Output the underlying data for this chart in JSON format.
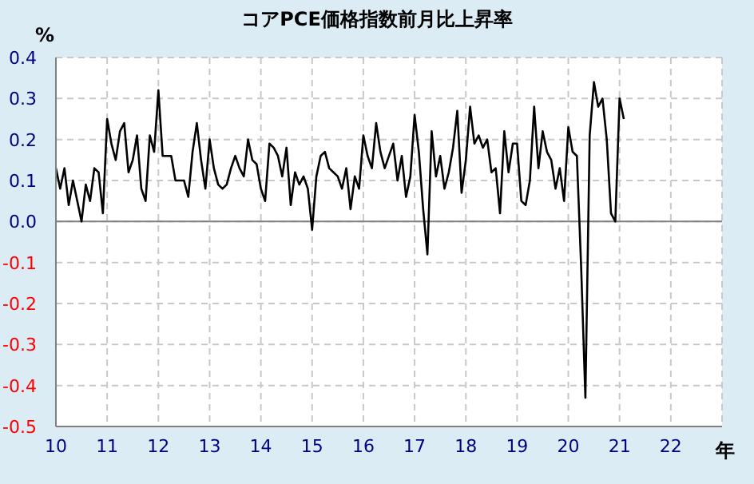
{
  "chart_data": {
    "type": "line",
    "title": "コアPCE価格指数前月比上昇率",
    "ylabel": "%",
    "xlabel": "年",
    "xlim": [
      10,
      23
    ],
    "xticks": [
      10,
      11,
      12,
      13,
      14,
      15,
      16,
      17,
      18,
      19,
      20,
      21,
      22
    ],
    "ylim": [
      -0.5,
      0.4
    ],
    "yticks": [
      {
        "value": -0.5,
        "label": "-0.5"
      },
      {
        "value": -0.4,
        "label": "-0.4"
      },
      {
        "value": -0.3,
        "label": "-0.3"
      },
      {
        "value": -0.2,
        "label": "-0.2"
      },
      {
        "value": -0.1,
        "label": "-0.1"
      },
      {
        "value": 0,
        "label": "0.0"
      },
      {
        "value": 0.1,
        "label": "0.1"
      },
      {
        "value": 0.2,
        "label": "0.2"
      },
      {
        "value": 0.3,
        "label": "0.3"
      },
      {
        "value": 0.4,
        "label": "0.4"
      }
    ],
    "grid": true,
    "marker": "none",
    "line_style": "solid",
    "ref_lines": [
      {
        "axis": "y",
        "value": 0,
        "color": "#808080"
      }
    ],
    "series": [
      {
        "color": "#000000",
        "x": [
          10,
          10.083,
          10.167,
          10.25,
          10.333,
          10.417,
          10.5,
          10.583,
          10.667,
          10.75,
          10.833,
          10.917,
          11,
          11.083,
          11.167,
          11.25,
          11.333,
          11.417,
          11.5,
          11.583,
          11.667,
          11.75,
          11.833,
          11.917,
          12,
          12.083,
          12.167,
          12.25,
          12.333,
          12.417,
          12.5,
          12.583,
          12.667,
          12.75,
          12.833,
          12.917,
          13,
          13.083,
          13.167,
          13.25,
          13.333,
          13.417,
          13.5,
          13.583,
          13.667,
          13.75,
          13.833,
          13.917,
          14,
          14.083,
          14.167,
          14.25,
          14.333,
          14.417,
          14.5,
          14.583,
          14.667,
          14.75,
          14.833,
          14.917,
          15,
          15.083,
          15.167,
          15.25,
          15.333,
          15.417,
          15.5,
          15.583,
          15.667,
          15.75,
          15.833,
          15.917,
          16,
          16.083,
          16.167,
          16.25,
          16.333,
          16.417,
          16.5,
          16.583,
          16.667,
          16.75,
          16.833,
          16.917,
          17,
          17.083,
          17.167,
          17.25,
          17.333,
          17.417,
          17.5,
          17.583,
          17.667,
          17.75,
          17.833,
          17.917,
          18,
          18.083,
          18.167,
          18.25,
          18.333,
          18.417,
          18.5,
          18.583,
          18.667,
          18.75,
          18.833,
          18.917,
          19,
          19.083,
          19.167,
          19.25,
          19.333,
          19.417,
          19.5,
          19.583,
          19.667,
          19.75,
          19.833,
          19.917,
          20,
          20.083,
          20.167,
          20.25,
          20.333,
          20.417,
          20.5,
          20.583,
          20.667,
          20.75,
          20.833,
          20.917,
          21,
          21.083
        ],
        "values": [
          0.13,
          0.08,
          0.13,
          0.04,
          0.1,
          0.05,
          0.0,
          0.09,
          0.05,
          0.13,
          0.12,
          0.02,
          0.25,
          0.19,
          0.15,
          0.22,
          0.24,
          0.12,
          0.15,
          0.21,
          0.08,
          0.05,
          0.21,
          0.17,
          0.32,
          0.16,
          0.16,
          0.16,
          0.1,
          0.1,
          0.1,
          0.06,
          0.17,
          0.24,
          0.15,
          0.08,
          0.2,
          0.13,
          0.09,
          0.08,
          0.09,
          0.13,
          0.16,
          0.13,
          0.11,
          0.2,
          0.15,
          0.14,
          0.08,
          0.05,
          0.19,
          0.18,
          0.16,
          0.11,
          0.18,
          0.04,
          0.12,
          0.09,
          0.11,
          0.08,
          -0.02,
          0.11,
          0.16,
          0.17,
          0.13,
          0.12,
          0.11,
          0.08,
          0.13,
          0.03,
          0.11,
          0.08,
          0.21,
          0.16,
          0.13,
          0.24,
          0.17,
          0.13,
          0.16,
          0.19,
          0.1,
          0.16,
          0.06,
          0.11,
          0.26,
          0.17,
          0.03,
          -0.08,
          0.22,
          0.11,
          0.16,
          0.08,
          0.12,
          0.18,
          0.27,
          0.07,
          0.15,
          0.28,
          0.19,
          0.21,
          0.18,
          0.2,
          0.12,
          0.13,
          0.02,
          0.22,
          0.12,
          0.19,
          0.19,
          0.05,
          0.04,
          0.1,
          0.28,
          0.13,
          0.22,
          0.17,
          0.15,
          0.08,
          0.13,
          0.05,
          0.23,
          0.17,
          0.16,
          -0.11,
          -0.43,
          0.21,
          0.34,
          0.28,
          0.3,
          0.2,
          0.02,
          0.0,
          0.3,
          0.25
        ]
      }
    ]
  }
}
